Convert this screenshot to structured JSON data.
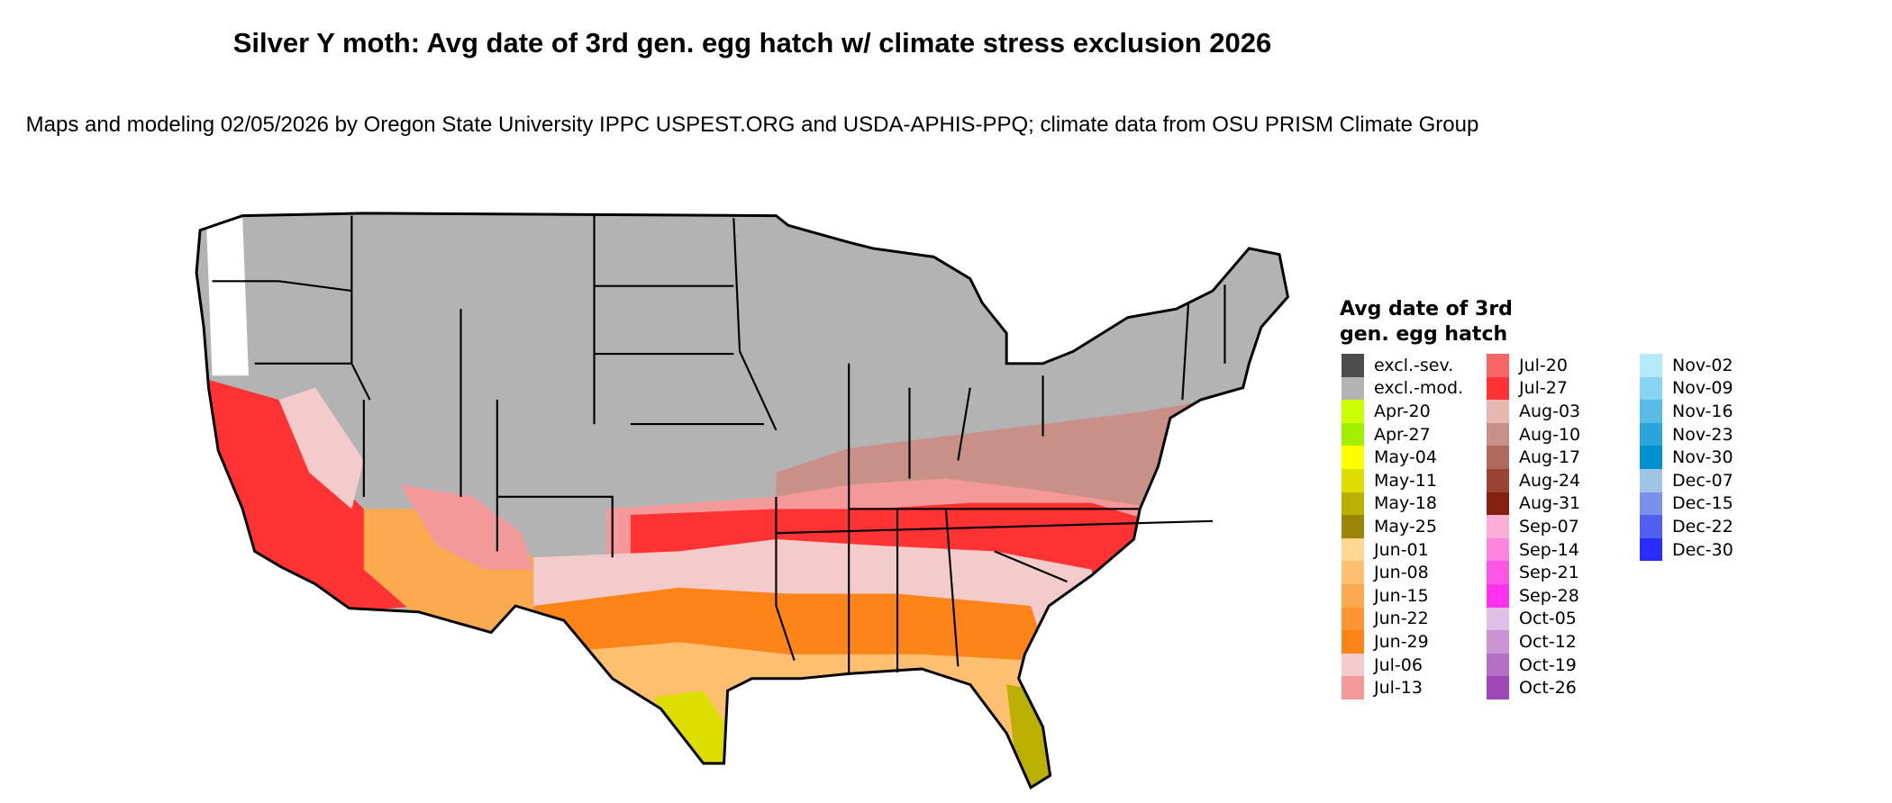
{
  "title": "Silver Y moth: Avg date of 3rd gen. egg hatch w/ climate stress exclusion 2026",
  "subtitle": "Maps and modeling 02/05/2026 by Oregon State University IPPC USPEST.ORG and USDA-APHIS-PPQ; climate data from OSU PRISM Climate Group",
  "legend": {
    "title": "Avg date of 3rd gen. egg hatch",
    "items": [
      {
        "label": "excl.-sev.",
        "color": "#4d4d4d"
      },
      {
        "label": "excl.-mod.",
        "color": "#b3b3b3"
      },
      {
        "label": "Apr-20",
        "color": "#ccff00"
      },
      {
        "label": "Apr-27",
        "color": "#a3f000"
      },
      {
        "label": "May-04",
        "color": "#ffff00"
      },
      {
        "label": "May-11",
        "color": "#dddd00"
      },
      {
        "label": "May-18",
        "color": "#bbb000"
      },
      {
        "label": "May-25",
        "color": "#9a8508"
      },
      {
        "label": "Jun-01",
        "color": "#fed790"
      },
      {
        "label": "Jun-08",
        "color": "#fec070"
      },
      {
        "label": "Jun-15",
        "color": "#fcaa50"
      },
      {
        "label": "Jun-22",
        "color": "#fd9535"
      },
      {
        "label": "Jun-29",
        "color": "#fd8418"
      },
      {
        "label": "Jul-06",
        "color": "#f3cbcb"
      },
      {
        "label": "Jul-13",
        "color": "#f39999"
      },
      {
        "label": "Jul-20",
        "color": "#f76666"
      },
      {
        "label": "Jul-27",
        "color": "#ff3333"
      },
      {
        "label": "Aug-03",
        "color": "#e6b8b0"
      },
      {
        "label": "Aug-10",
        "color": "#c99088"
      },
      {
        "label": "Aug-17",
        "color": "#b06a5c"
      },
      {
        "label": "Aug-24",
        "color": "#9b4433"
      },
      {
        "label": "Aug-31",
        "color": "#83200e"
      },
      {
        "label": "Sep-07",
        "color": "#fdadd8"
      },
      {
        "label": "Sep-14",
        "color": "#fd85dd"
      },
      {
        "label": "Sep-21",
        "color": "#fd55e5"
      },
      {
        "label": "Sep-28",
        "color": "#ff30f0"
      },
      {
        "label": "Oct-05",
        "color": "#e0bfe6"
      },
      {
        "label": "Oct-12",
        "color": "#c994d4"
      },
      {
        "label": "Oct-19",
        "color": "#b36ec6"
      },
      {
        "label": "Oct-26",
        "color": "#9e48b7"
      },
      {
        "label": "Nov-02",
        "color": "#b3ebfd"
      },
      {
        "label": "Nov-09",
        "color": "#87d4f0"
      },
      {
        "label": "Nov-16",
        "color": "#58bce6"
      },
      {
        "label": "Nov-23",
        "color": "#2aa5da"
      },
      {
        "label": "Nov-30",
        "color": "#0091d0"
      },
      {
        "label": "Dec-07",
        "color": "#a0c4e6"
      },
      {
        "label": "Dec-15",
        "color": "#7891ea"
      },
      {
        "label": "Dec-22",
        "color": "#4f60ee"
      },
      {
        "label": "Dec-30",
        "color": "#2a2cfd"
      }
    ]
  }
}
